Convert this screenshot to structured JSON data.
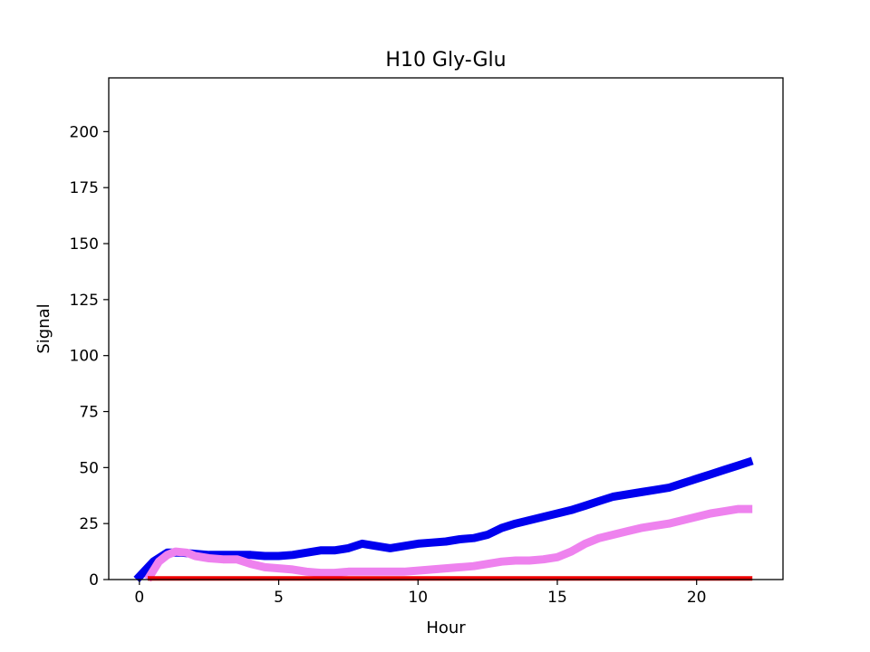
{
  "chart_data": {
    "type": "line",
    "title": "H10 Gly-Glu",
    "xlabel": "Hour",
    "ylabel": "Signal",
    "xlim": [
      -1.1,
      23.1
    ],
    "ylim": [
      0,
      224
    ],
    "xticks": [
      0,
      5,
      10,
      15,
      20
    ],
    "yticks": [
      0,
      25,
      50,
      75,
      100,
      125,
      150,
      175,
      200
    ],
    "grid": false,
    "legend": "none",
    "series": [
      {
        "name": "blue",
        "color": "#0000ee",
        "x": [
          -0.1,
          0.5,
          1,
          1.5,
          2,
          2.5,
          3,
          3.5,
          4,
          4.5,
          5,
          5.5,
          6,
          6.5,
          7,
          7.5,
          8,
          8.5,
          9,
          9.5,
          10,
          10.5,
          11,
          11.5,
          12,
          12.5,
          13,
          13.5,
          14,
          14.5,
          15,
          15.5,
          16,
          16.5,
          17,
          17.5,
          18,
          18.5,
          19,
          19.5,
          20,
          20.5,
          21,
          21.5,
          22
        ],
        "y": [
          0,
          8,
          12,
          12,
          11.5,
          11,
          11,
          11,
          11,
          10.5,
          10.5,
          11,
          12,
          13,
          13,
          14,
          16,
          15,
          14,
          15,
          16,
          16.5,
          17,
          18,
          18.5,
          20,
          23,
          25,
          26.5,
          28,
          29.5,
          31,
          33,
          35,
          37,
          38,
          39,
          40,
          41,
          43,
          45,
          47,
          49,
          51,
          53
        ]
      },
      {
        "name": "violet",
        "color": "#ee82ee",
        "x": [
          0.3,
          0.7,
          1,
          1.3,
          1.7,
          2,
          2.5,
          3,
          3.5,
          4,
          4.5,
          5,
          5.5,
          6,
          6.5,
          7,
          7.5,
          8,
          8.5,
          9,
          9.5,
          10,
          10.5,
          11,
          11.5,
          12,
          12.5,
          13,
          13.5,
          14,
          14.5,
          15,
          15.5,
          16,
          16.5,
          17,
          17.5,
          18,
          18.5,
          19,
          19.5,
          20,
          20.5,
          21,
          21.5,
          22
        ],
        "y": [
          0,
          8,
          11,
          12.5,
          12,
          10.5,
          9.5,
          9,
          9,
          7,
          5.5,
          5,
          4.5,
          3.5,
          3,
          3,
          3.5,
          3.5,
          3.5,
          3.5,
          3.5,
          4,
          4.5,
          5,
          5.5,
          6,
          7,
          8,
          8.5,
          8.5,
          9,
          10,
          12.5,
          16,
          18.5,
          20,
          21.5,
          23,
          24,
          25,
          26.5,
          28,
          29.5,
          30.5,
          31.5,
          31.5
        ]
      },
      {
        "name": "red",
        "color": "#ee0000",
        "x": [
          0.3,
          22
        ],
        "y": [
          0.5,
          0.5
        ]
      }
    ]
  }
}
